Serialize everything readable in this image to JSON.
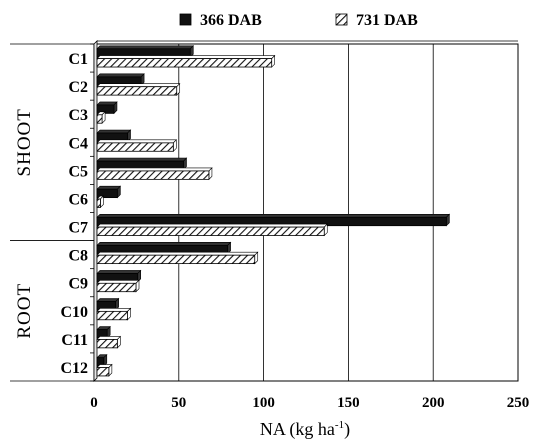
{
  "chart_data": {
    "type": "bar",
    "orientation": "horizontal",
    "categories": [
      "C1",
      "C2",
      "C3",
      "C4",
      "C5",
      "C6",
      "C7",
      "C8",
      "C9",
      "C10",
      "C11",
      "C12"
    ],
    "groups": [
      {
        "label": "SHOOT",
        "categories": [
          "C1",
          "C2",
          "C3",
          "C4",
          "C5",
          "C6",
          "C7"
        ]
      },
      {
        "label": "ROOT",
        "categories": [
          "C8",
          "C9",
          "C10",
          "C11",
          "C12"
        ]
      }
    ],
    "series": [
      {
        "name": "366 DAB",
        "fill": "solid",
        "color": "#111111",
        "values": [
          55,
          26,
          10,
          18,
          51,
          12,
          206,
          77,
          24,
          11,
          6,
          4
        ]
      },
      {
        "name": "731 DAB",
        "fill": "hatched",
        "color": "#111111",
        "values": [
          103,
          47,
          3,
          45,
          66,
          2,
          134,
          93,
          23,
          18,
          12,
          7
        ]
      }
    ],
    "xlabel_main": "NA (kg ha",
    "xlabel_sup": "-1",
    "xlabel_end": ")",
    "xlim": [
      0,
      250
    ],
    "xticks": [
      "0",
      "50",
      "100",
      "150",
      "200",
      "250"
    ],
    "gridlines": "vertical",
    "legend_position": "top-center",
    "title": "",
    "ylabel": ""
  }
}
